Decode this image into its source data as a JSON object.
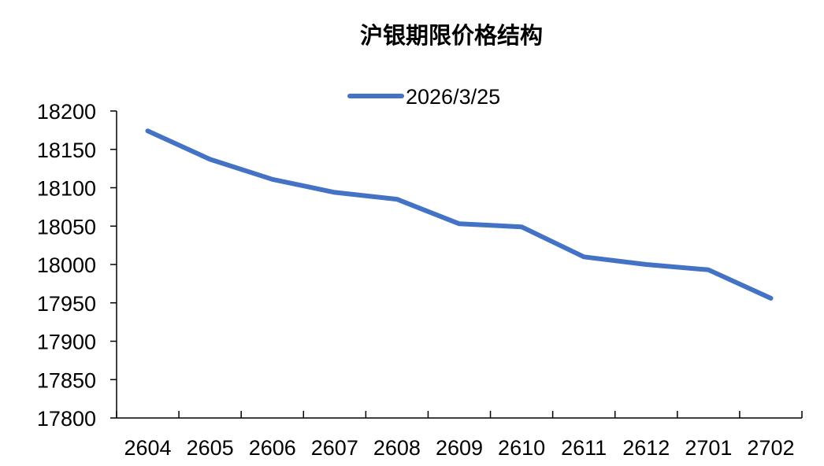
{
  "chart_data": {
    "type": "line",
    "title": "沪银期限价格结构",
    "xlabel": "",
    "ylabel": "",
    "categories": [
      "2604",
      "2605",
      "2606",
      "2607",
      "2608",
      "2609",
      "2610",
      "2611",
      "2612",
      "2701",
      "2702"
    ],
    "series": [
      {
        "name": "2026/3/25",
        "values": [
          18174,
          18137,
          18111,
          18094,
          18085,
          18053,
          18049,
          18010,
          18000,
          17993,
          17956
        ],
        "color": "#4472C4"
      }
    ],
    "ylim": [
      17800,
      18200
    ],
    "yticks": [
      17800,
      17850,
      17900,
      17950,
      18000,
      18050,
      18100,
      18150,
      18200
    ],
    "grid": false,
    "legend_position": "top-center",
    "axis_color": "#000000"
  }
}
